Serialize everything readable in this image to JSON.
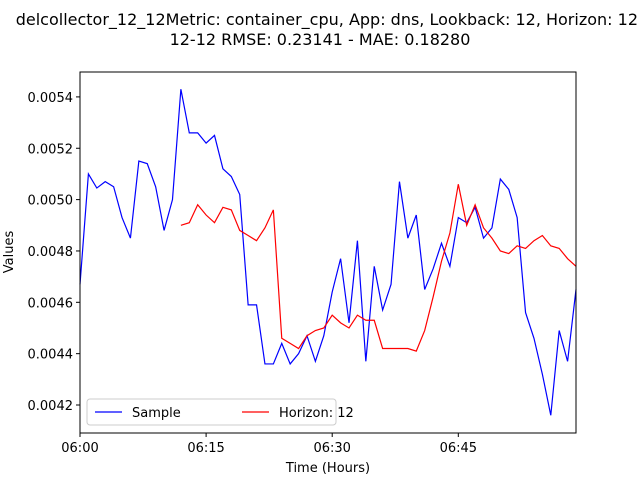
{
  "chart_data": {
    "type": "line",
    "title": "delcollector_12_12Metric: container_cpu, App: dns, Lookback: 12, Horizon: 12",
    "subtitle": "12-12 RMSE: 0.23141 - MAE: 0.18280",
    "x_label": "Time (Hours)",
    "y_label": "Values",
    "x": [
      "06:00",
      "06:01",
      "06:02",
      "06:03",
      "06:04",
      "06:05",
      "06:06",
      "06:07",
      "06:08",
      "06:09",
      "06:10",
      "06:11",
      "06:12",
      "06:13",
      "06:14",
      "06:15",
      "06:16",
      "06:17",
      "06:18",
      "06:19",
      "06:20",
      "06:21",
      "06:22",
      "06:23",
      "06:24",
      "06:25",
      "06:26",
      "06:27",
      "06:28",
      "06:29",
      "06:30",
      "06:31",
      "06:32",
      "06:33",
      "06:34",
      "06:35",
      "06:36",
      "06:37",
      "06:38",
      "06:39",
      "06:40",
      "06:41",
      "06:42",
      "06:43",
      "06:44",
      "06:45",
      "06:46",
      "06:47",
      "06:48",
      "06:49",
      "06:50",
      "06:51",
      "06:52",
      "06:53",
      "06:54",
      "06:55",
      "06:56",
      "06:57",
      "06:58",
      "06:59"
    ],
    "series": [
      {
        "name": "Sample",
        "color": "#0000ff",
        "values": [
          0.00467,
          0.0051,
          0.005045,
          0.00507,
          0.00505,
          0.00493,
          0.00485,
          0.00515,
          0.00514,
          0.00505,
          0.00488,
          0.005,
          0.00543,
          0.00526,
          0.00526,
          0.00522,
          0.00525,
          0.00512,
          0.00509,
          0.00502,
          0.00459,
          0.00459,
          0.00436,
          0.00436,
          0.00444,
          0.00436,
          0.0044,
          0.00447,
          0.00437,
          0.00447,
          0.00464,
          0.00477,
          0.00452,
          0.00484,
          0.00437,
          0.00474,
          0.00457,
          0.00467,
          0.00507,
          0.00485,
          0.00494,
          0.00465,
          0.00473,
          0.00483,
          0.00474,
          0.00493,
          0.00491,
          0.00497,
          0.00485,
          0.00489,
          0.00508,
          0.00504,
          0.00493,
          0.00456,
          0.00446,
          0.00432,
          0.00416,
          0.00449,
          0.00437,
          0.00465
        ]
      },
      {
        "name": "Horizon: 12",
        "color": "#ff0000",
        "values": [
          null,
          null,
          null,
          null,
          null,
          null,
          null,
          null,
          null,
          null,
          null,
          null,
          0.0049,
          0.00491,
          0.00498,
          0.00494,
          0.00491,
          0.00497,
          0.00496,
          0.00488,
          0.00486,
          0.00484,
          0.00489,
          0.00496,
          0.00446,
          0.00444,
          0.00442,
          0.00447,
          0.00449,
          0.0045,
          0.00455,
          0.00452,
          0.0045,
          0.00455,
          0.00453,
          0.00453,
          0.00442,
          0.00442,
          0.00442,
          0.00442,
          0.00441,
          0.00449,
          0.00462,
          0.00476,
          0.00487,
          0.00506,
          0.0049,
          0.00498,
          0.00489,
          0.00485,
          0.0048,
          0.00479,
          0.00482,
          0.00481,
          0.00484,
          0.00486,
          0.00482,
          0.00481,
          0.00477,
          0.00474
        ]
      }
    ],
    "xlim": [
      "06:00",
      "06:59"
    ],
    "xticks": [
      "06:00",
      "06:15",
      "06:30",
      "06:45"
    ],
    "ylim": [
      0.004091,
      0.005497
    ],
    "yticks": [
      0.0042,
      0.0044,
      0.0046,
      0.0048,
      {
        "value": 0.005,
        "label": "0.0050"
      },
      0.0052,
      0.0054
    ],
    "legend": "lower left",
    "grid": false
  }
}
